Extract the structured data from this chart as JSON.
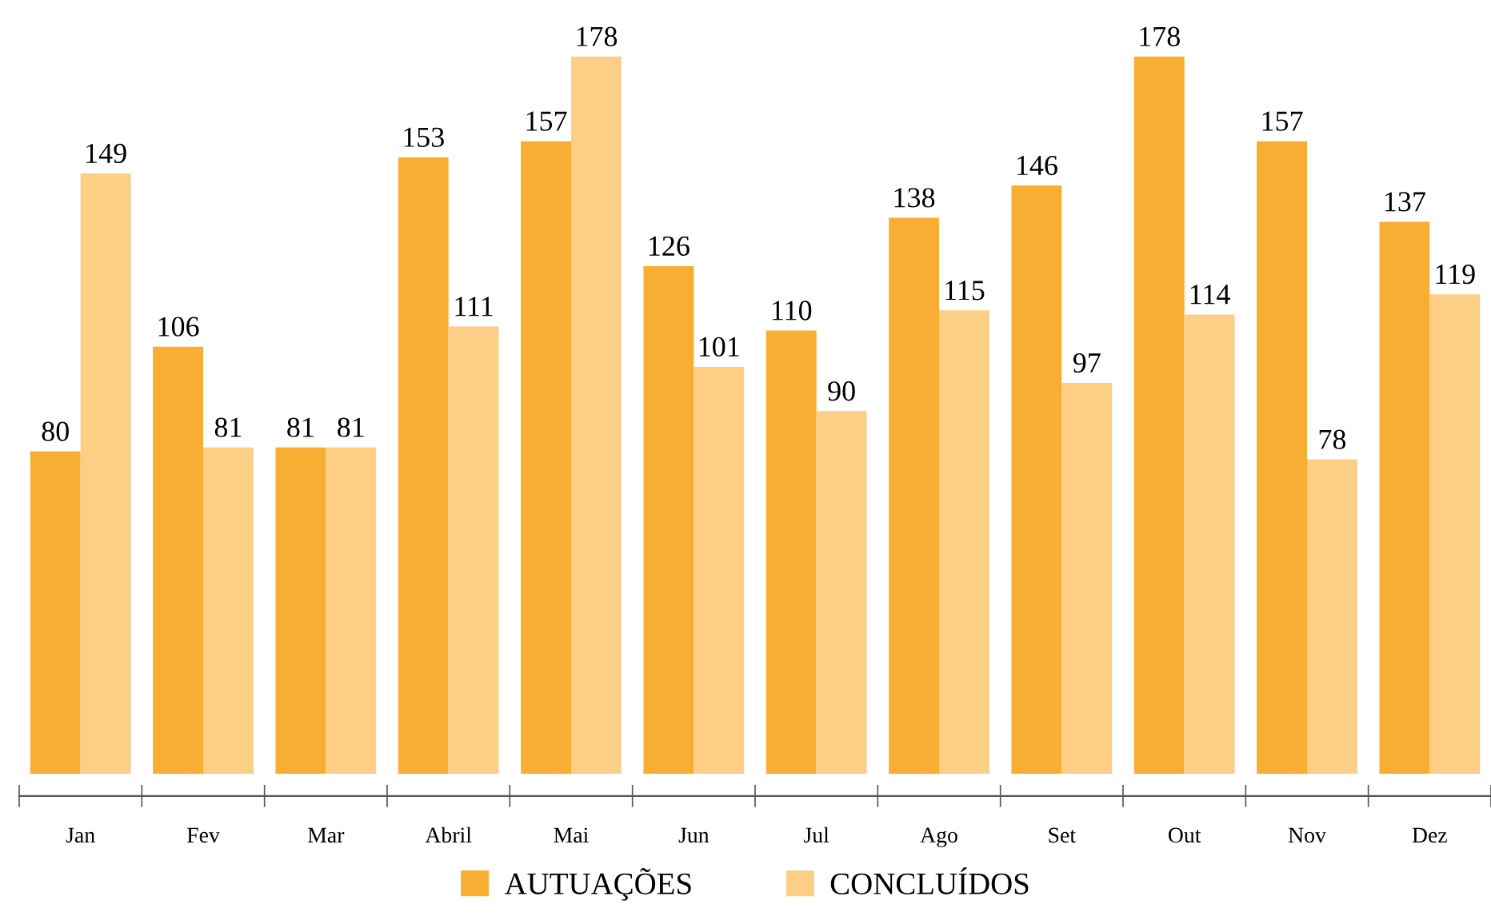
{
  "chart_data": {
    "type": "bar",
    "categories": [
      "Jan",
      "Fev",
      "Mar",
      "Abril",
      "Mai",
      "Jun",
      "Jul",
      "Ago",
      "Set",
      "Out",
      "Nov",
      "Dez"
    ],
    "series": [
      {
        "name": "AUTUAÇÕES",
        "color": "#f7ae33",
        "values": [
          80,
          106,
          81,
          153,
          157,
          126,
          110,
          138,
          146,
          178,
          157,
          137
        ]
      },
      {
        "name": "CONCLUÍDOS",
        "color": "#fcce86",
        "values": [
          149,
          81,
          81,
          111,
          178,
          101,
          90,
          115,
          97,
          114,
          78,
          119
        ]
      }
    ],
    "data_labels": true,
    "legend": "bottom",
    "grid": false,
    "tick_labels": "x"
  }
}
